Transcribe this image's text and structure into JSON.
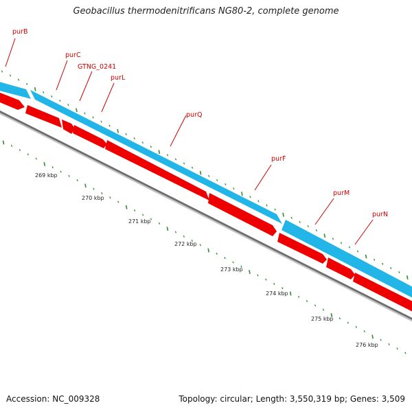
{
  "title": "Geobacillus thermodenitrificans NG80-2, complete genome",
  "footer": {
    "accession": "Accession: NC_009328",
    "summary": "Topology: circular; Length: 3,550,319 bp; Genes: 3,509"
  },
  "colors": {
    "background": "#ffffff",
    "forward_strand": "#22b5e8",
    "reverse_strand": "#ee0000",
    "backbone": "#8a8a8a",
    "ticks": "#2e8b2e",
    "gene_labels": "#cc0000",
    "kbp_labels": "#222222"
  },
  "gene_labels": [
    {
      "name": "purB"
    },
    {
      "name": "purC"
    },
    {
      "name": "GTNG_0241"
    },
    {
      "name": "purL"
    },
    {
      "name": "purQ"
    },
    {
      "name": "purF"
    },
    {
      "name": "purM"
    },
    {
      "name": "purN"
    }
  ],
  "kbp_labels": [
    "269 kbp",
    "270 kbp",
    "271 kbp",
    "272 kbp",
    "273 kbp",
    "274 kbp",
    "275 kbp",
    "276 kbp"
  ]
}
